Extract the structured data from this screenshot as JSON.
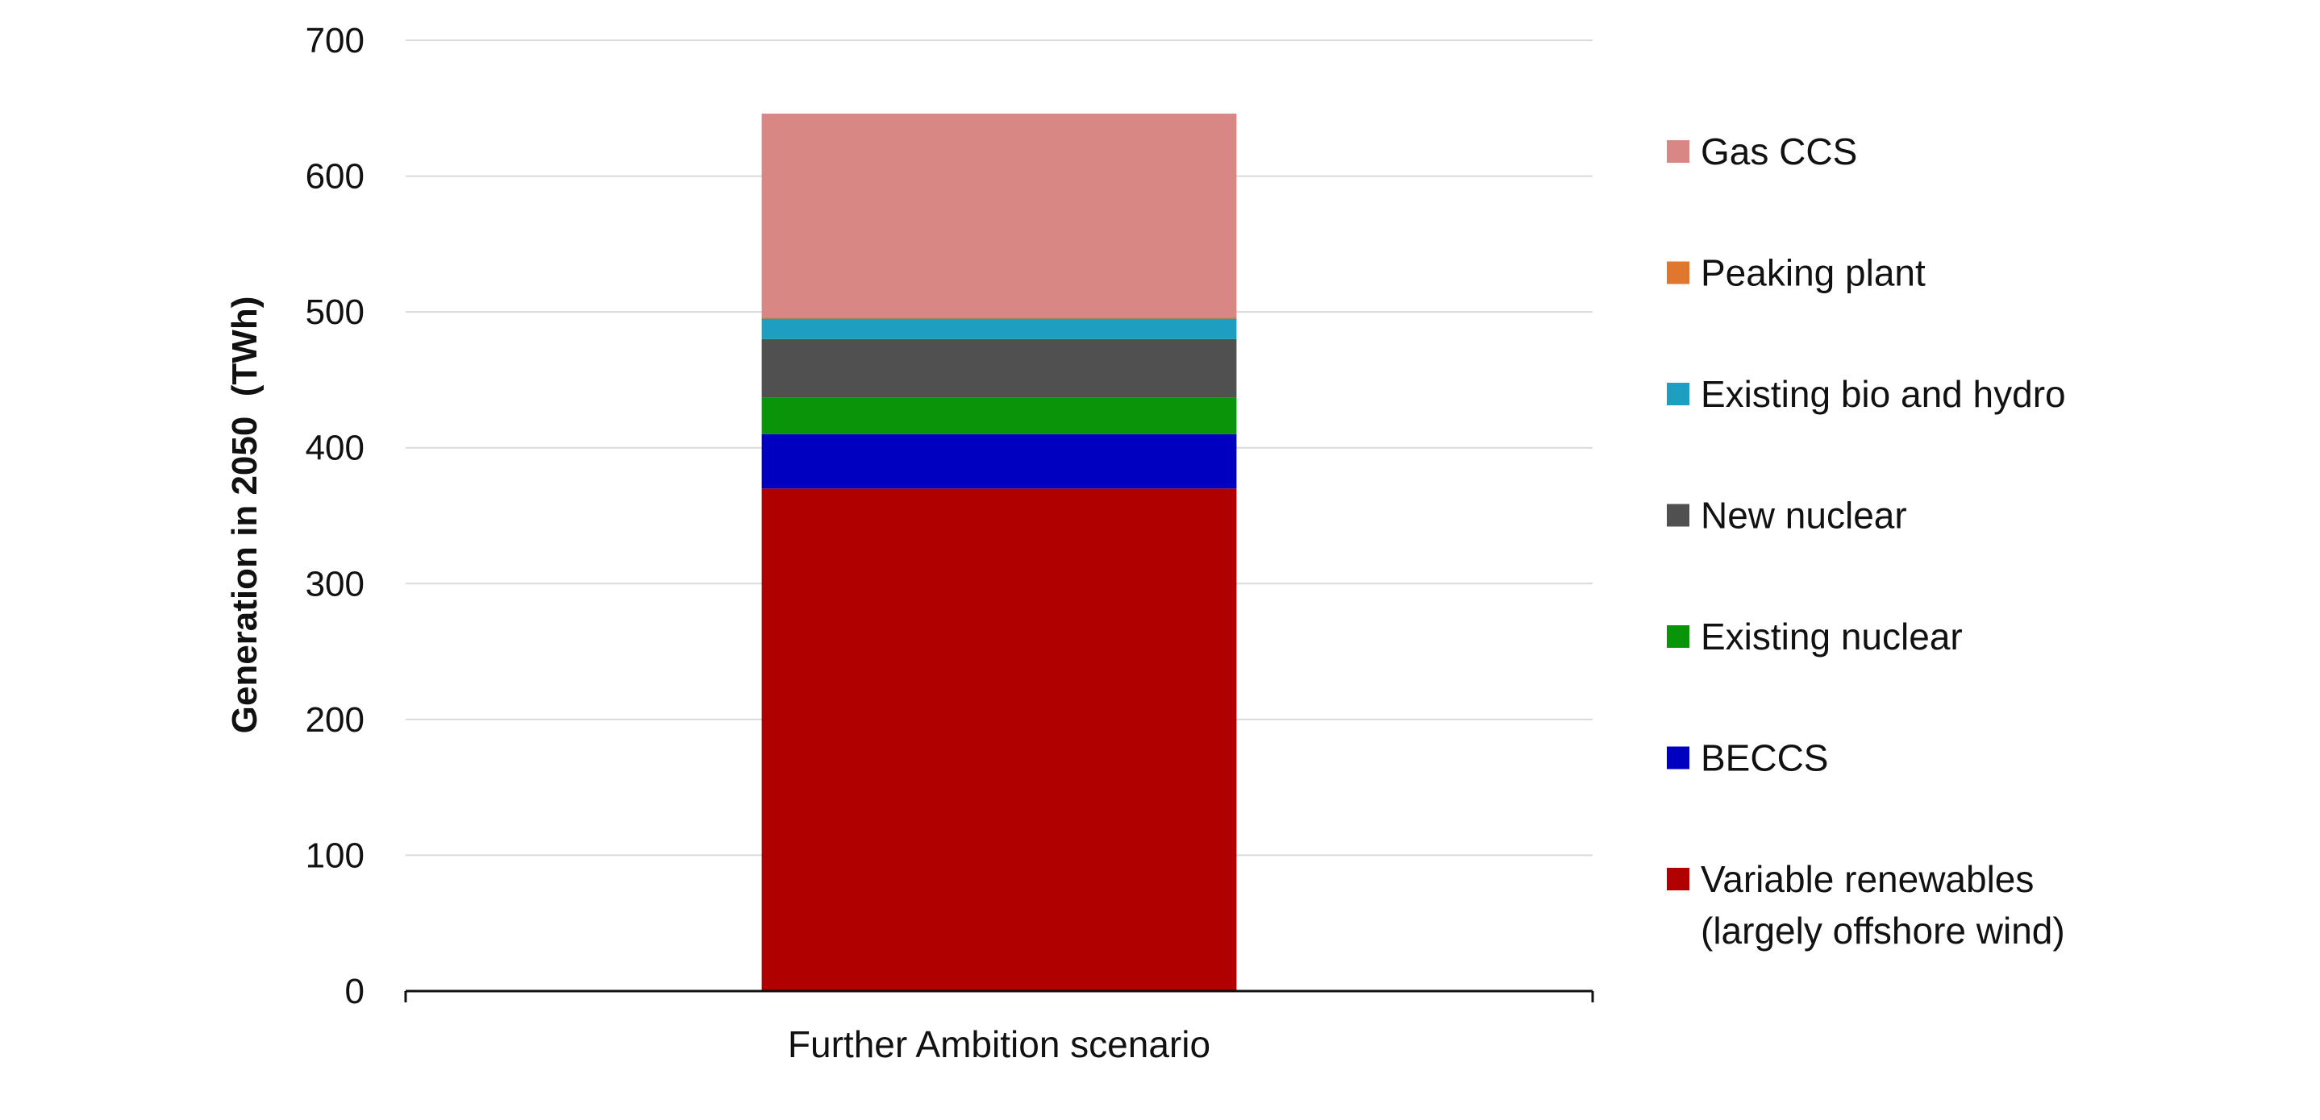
{
  "chart_data": {
    "type": "bar",
    "stacked": true,
    "categories": [
      "Further Ambition scenario"
    ],
    "ylabel": "Generation in 2050  (TWh)",
    "ylim": [
      0,
      700
    ],
    "yticks": [
      0,
      100,
      200,
      300,
      400,
      500,
      600,
      700
    ],
    "grid": true,
    "legend_position": "right",
    "series": [
      {
        "name": "Variable renewables (largely offshore wind)",
        "label_lines": [
          "Variable renewables",
          "(largely offshore wind)"
        ],
        "values": [
          370
        ],
        "color": "#b00000"
      },
      {
        "name": "BECCS",
        "label_lines": [
          "BECCS"
        ],
        "values": [
          40
        ],
        "color": "#0000c0"
      },
      {
        "name": "Existing nuclear",
        "label_lines": [
          "Existing nuclear"
        ],
        "values": [
          27
        ],
        "color": "#0a940a"
      },
      {
        "name": "New nuclear",
        "label_lines": [
          "New nuclear"
        ],
        "values": [
          43
        ],
        "color": "#505050"
      },
      {
        "name": "Existing bio and hydro",
        "label_lines": [
          "Existing bio and hydro"
        ],
        "values": [
          15
        ],
        "color": "#1e9ec0"
      },
      {
        "name": "Peaking plant",
        "label_lines": [
          "Peaking plant"
        ],
        "values": [
          1
        ],
        "color": "#e0772e"
      },
      {
        "name": "Gas CCS",
        "label_lines": [
          "Gas CCS"
        ],
        "values": [
          150
        ],
        "color": "#d98785"
      }
    ],
    "legend_order": [
      "Gas CCS",
      "Peaking plant",
      "Existing bio and hydro",
      "New nuclear",
      "Existing nuclear",
      "BECCS",
      "Variable renewables (largely offshore wind)"
    ]
  }
}
